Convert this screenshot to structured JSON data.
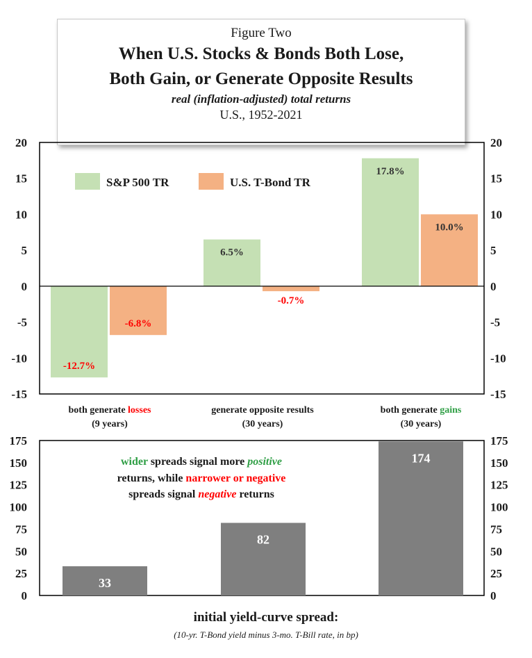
{
  "header": {
    "figure_label": "Figure Two",
    "title_line1": "When U.S. Stocks & Bonds Both Lose,",
    "title_line2": "Both Gain, or Generate Opposite Results",
    "subtitle": "real (inflation-adjusted) total returns",
    "subtitle2": "U.S., 1952-2021"
  },
  "colors": {
    "sp500": "#c5e0b4",
    "tbond": "#f4b183",
    "spread_bar": "#7f7f7f",
    "negative_label": "#ff0000",
    "positive_word": "#2e9e44",
    "frame": "#000000"
  },
  "chart_data": [
    {
      "type": "bar",
      "title": "real (inflation-adjusted) total returns",
      "categories": [
        {
          "prefix": "both generate ",
          "highlight": "losses",
          "highlight_color": "#ff0000",
          "years": "(9 years)"
        },
        {
          "prefix": "generate opposite results",
          "highlight": "",
          "highlight_color": "",
          "years": "(30 years)"
        },
        {
          "prefix": "both generate ",
          "highlight": "gains",
          "highlight_color": "#2e9e44",
          "years": "(30 years)"
        }
      ],
      "series": [
        {
          "name": "S&P 500 TR",
          "values": [
            -12.7,
            6.5,
            17.8
          ],
          "labels": [
            "-12.7%",
            "6.5%",
            "17.8%"
          ]
        },
        {
          "name": "U.S. T-Bond TR",
          "values": [
            -6.8,
            -0.7,
            10.0
          ],
          "labels": [
            "-6.8%",
            "-0.7%",
            "10.0%"
          ]
        }
      ],
      "ylim": [
        -15,
        20
      ],
      "yticks": [
        20,
        15,
        10,
        5,
        0,
        -5,
        -10,
        -15
      ],
      "legend_position": "top-left"
    },
    {
      "type": "bar",
      "title": "initial yield-curve spread:",
      "subtitle": "(10-yr. T-Bond yield minus 3-mo. T-Bill rate, in bp)",
      "categories": [
        "both generate losses",
        "generate opposite results",
        "both generate gains"
      ],
      "values": [
        33,
        82,
        174
      ],
      "labels": [
        "33",
        "82",
        "174"
      ],
      "ylim": [
        0,
        175
      ],
      "yticks": [
        175,
        150,
        125,
        100,
        75,
        50,
        25,
        0
      ],
      "annotation": {
        "line1": [
          {
            "text": "wider",
            "style": "green"
          },
          {
            "text": " spreads signal more ",
            "style": "plain"
          },
          {
            "text": "positive",
            "style": "green-italic"
          }
        ],
        "line2": [
          {
            "text": "returns, while ",
            "style": "plain"
          },
          {
            "text": "narrower or negative",
            "style": "red"
          }
        ],
        "line3": [
          {
            "text": "spreads signal ",
            "style": "plain"
          },
          {
            "text": "negative",
            "style": "red-italic"
          },
          {
            "text": " returns",
            "style": "plain"
          }
        ]
      }
    }
  ]
}
